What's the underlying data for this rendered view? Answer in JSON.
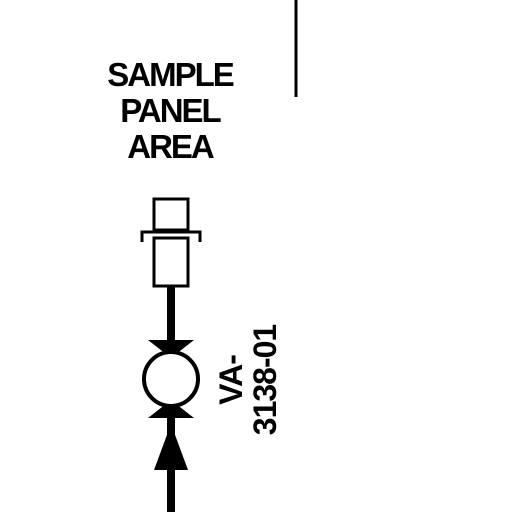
{
  "area_label": {
    "line1": "SAMPLE",
    "line2": "PANEL",
    "line3": "AREA"
  },
  "valve": {
    "tag_line1": "VA-",
    "tag_line2": "3138-01"
  },
  "colors": {
    "ink": "#000000",
    "background": "#ffffff"
  }
}
